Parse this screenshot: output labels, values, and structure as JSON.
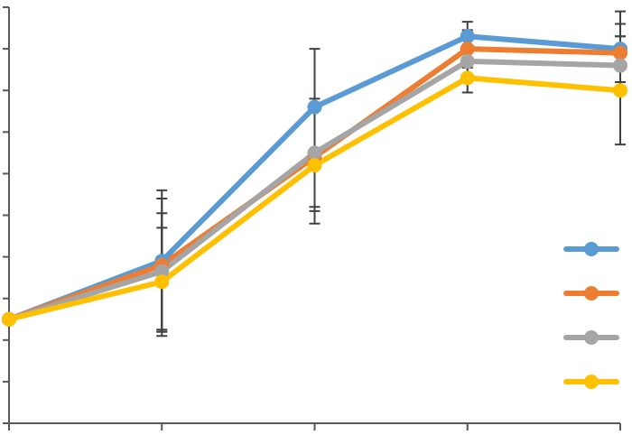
{
  "chart_data": {
    "type": "line",
    "x": [
      1,
      2,
      3,
      4,
      5
    ],
    "ylim": [
      0,
      10
    ],
    "yticks": [
      0,
      1,
      2,
      3,
      4,
      5,
      6,
      7,
      8,
      9,
      10
    ],
    "grid": false,
    "legend_position": "right",
    "series": [
      {
        "color": "#5B9BD5",
        "values": [
          2.5,
          3.9,
          7.6,
          9.3,
          9.0
        ],
        "error": [
          0,
          1.7,
          1.4,
          0.35,
          0.9
        ]
      },
      {
        "color": "#ED7D31",
        "values": [
          2.5,
          3.8,
          6.4,
          9.0,
          8.9
        ],
        "error": [
          0,
          1.6,
          1.3,
          0.45,
          0.7
        ]
      },
      {
        "color": "#A5A5A5",
        "values": [
          2.5,
          3.65,
          6.5,
          8.7,
          8.6
        ],
        "error": [
          0,
          1.4,
          1.3,
          0.35,
          0.7
        ]
      },
      {
        "color": "#FFC000",
        "values": [
          2.5,
          3.4,
          6.2,
          8.3,
          8.0
        ],
        "error": [
          0,
          1.3,
          1.4,
          0.35,
          1.3
        ]
      }
    ]
  }
}
